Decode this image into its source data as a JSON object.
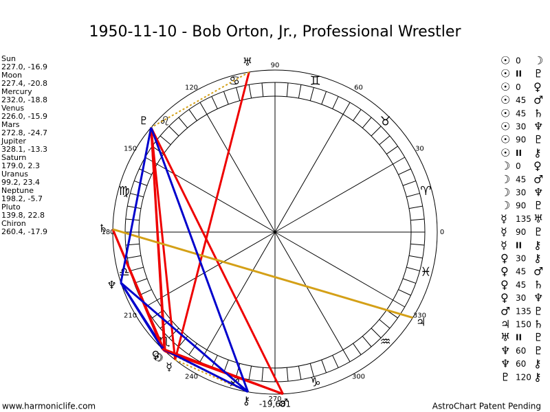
{
  "title": "1950-11-10 - Bob Orton, Jr., Professional Wrestler",
  "planets": [
    {
      "name": "Sun",
      "position": "227.0, -16.9",
      "glyph": "☉"
    },
    {
      "name": "Moon",
      "position": "227.4, -20.8",
      "glyph": "☽"
    },
    {
      "name": "Mercury",
      "position": "232.0, -18.8",
      "glyph": "☿"
    },
    {
      "name": "Venus",
      "position": "226.0, -15.9",
      "glyph": "♀"
    },
    {
      "name": "Mars",
      "position": "272.8, -24.7",
      "glyph": "♂"
    },
    {
      "name": "Jupiter",
      "position": "328.1, -13.3",
      "glyph": "♃"
    },
    {
      "name": "Saturn",
      "position": "179.0, 2.3",
      "glyph": "♄"
    },
    {
      "name": "Uranus",
      "position": "99.2, 23.4",
      "glyph": "♅"
    },
    {
      "name": "Neptune",
      "position": "198.2, -5.7",
      "glyph": "♆"
    },
    {
      "name": "Pluto",
      "position": "139.8, 22.8",
      "glyph": "♇"
    },
    {
      "name": "Chiron",
      "position": "260.4, -17.9",
      "glyph": "⚷"
    }
  ],
  "zodiac": [
    "♈",
    "♉",
    "♊",
    "♋",
    "♌",
    "♍",
    "♎",
    "♏",
    "♐",
    "♑",
    "♒",
    "♓"
  ],
  "degree_labels": [
    0,
    30,
    60,
    90,
    120,
    150,
    180,
    210,
    240,
    270,
    300,
    330
  ],
  "aspects": [
    {
      "p1": "☉",
      "aspect": "0",
      "p2": "☽"
    },
    {
      "p1": "☉",
      "aspect": "II",
      "p2": "♇"
    },
    {
      "p1": "☉",
      "aspect": "0",
      "p2": "♀"
    },
    {
      "p1": "☉",
      "aspect": "45",
      "p2": "♂"
    },
    {
      "p1": "☉",
      "aspect": "45",
      "p2": "♄"
    },
    {
      "p1": "☉",
      "aspect": "30",
      "p2": "♆"
    },
    {
      "p1": "☉",
      "aspect": "90",
      "p2": "♇"
    },
    {
      "p1": "☉",
      "aspect": "II",
      "p2": "⚷"
    },
    {
      "p1": "☽",
      "aspect": "0",
      "p2": "♀"
    },
    {
      "p1": "☽",
      "aspect": "45",
      "p2": "♂"
    },
    {
      "p1": "☽",
      "aspect": "30",
      "p2": "♆"
    },
    {
      "p1": "☽",
      "aspect": "90",
      "p2": "♇"
    },
    {
      "p1": "☿",
      "aspect": "135",
      "p2": "♅"
    },
    {
      "p1": "☿",
      "aspect": "90",
      "p2": "♇"
    },
    {
      "p1": "☿",
      "aspect": "II",
      "p2": "⚷"
    },
    {
      "p1": "♀",
      "aspect": "30",
      "p2": "⚷"
    },
    {
      "p1": "♀",
      "aspect": "45",
      "p2": "♂"
    },
    {
      "p1": "♀",
      "aspect": "45",
      "p2": "♄"
    },
    {
      "p1": "♀",
      "aspect": "30",
      "p2": "♆"
    },
    {
      "p1": "♂",
      "aspect": "135",
      "p2": "♇"
    },
    {
      "p1": "♃",
      "aspect": "150",
      "p2": "♄"
    },
    {
      "p1": "♅",
      "aspect": "II",
      "p2": "♇"
    },
    {
      "p1": "♆",
      "aspect": "60",
      "p2": "♇"
    },
    {
      "p1": "♆",
      "aspect": "60",
      "p2": "⚷"
    },
    {
      "p1": "♇",
      "aspect": "120",
      "p2": "⚷"
    }
  ],
  "bottom_value": "-19,681",
  "footer": {
    "left": "www.harmoniclife.com",
    "right": "AstroChart Patent Pending"
  }
}
